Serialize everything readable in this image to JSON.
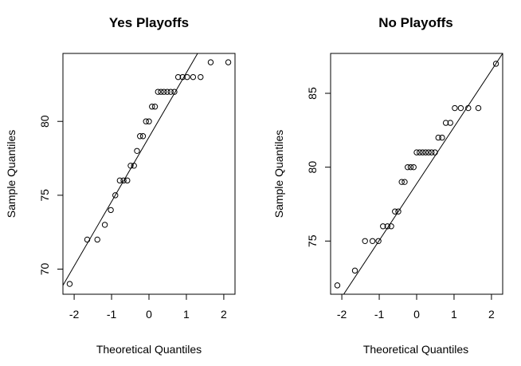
{
  "chart_data": [
    {
      "type": "scatter",
      "title": "Yes Playoffs",
      "xlabel": "Theoretical Quantiles",
      "ylabel": "Sample Quantiles",
      "xlim": [
        -2.3,
        2.3
      ],
      "ylim": [
        68.3,
        84.6
      ],
      "xticks": [
        -2,
        -1,
        0,
        1,
        2
      ],
      "yticks": [
        70,
        75,
        80
      ],
      "reference_line": {
        "x1": -2.3,
        "y1": 68.9,
        "x2": 1.3,
        "y2": 84.6
      },
      "series": [
        {
          "x": [
            -2.12,
            -1.65,
            -1.38,
            -1.18,
            -1.02,
            -0.9,
            -0.78,
            -0.68,
            -0.58,
            -0.49,
            -0.4,
            -0.32,
            -0.24,
            -0.16,
            -0.08,
            0.0,
            0.08,
            0.16,
            0.24,
            0.32,
            0.4,
            0.49,
            0.58,
            0.68,
            0.78,
            0.9,
            1.02,
            1.18,
            1.38,
            1.65,
            2.12
          ],
          "y": [
            69,
            72,
            72,
            73,
            74,
            75,
            76,
            76,
            76,
            77,
            77,
            78,
            79,
            79,
            80,
            80,
            81,
            81,
            82,
            82,
            82,
            82,
            82,
            82,
            83,
            83,
            83,
            83,
            83,
            84,
            84
          ]
        }
      ]
    },
    {
      "type": "scatter",
      "title": "No Playoffs",
      "xlabel": "Theoretical Quantiles",
      "ylabel": "Sample Quantiles",
      "xlim": [
        -2.3,
        2.3
      ],
      "ylim": [
        71.4,
        87.7
      ],
      "xticks": [
        -2,
        -1,
        0,
        1,
        2
      ],
      "yticks": [
        75,
        80,
        85
      ],
      "reference_line": {
        "x1": -1.95,
        "y1": 71.4,
        "x2": 2.3,
        "y2": 87.7
      },
      "series": [
        {
          "x": [
            -2.12,
            -1.65,
            -1.38,
            -1.18,
            -1.02,
            -0.9,
            -0.78,
            -0.68,
            -0.58,
            -0.49,
            -0.4,
            -0.32,
            -0.24,
            -0.16,
            -0.08,
            0.0,
            0.08,
            0.16,
            0.24,
            0.32,
            0.4,
            0.49,
            0.58,
            0.68,
            0.78,
            0.9,
            1.02,
            1.18,
            1.38,
            1.65,
            2.12
          ],
          "y": [
            72,
            73,
            75,
            75,
            75,
            76,
            76,
            76,
            77,
            77,
            79,
            79,
            80,
            80,
            80,
            81,
            81,
            81,
            81,
            81,
            81,
            81,
            82,
            82,
            83,
            83,
            84,
            84,
            84,
            84,
            87
          ]
        }
      ]
    }
  ]
}
